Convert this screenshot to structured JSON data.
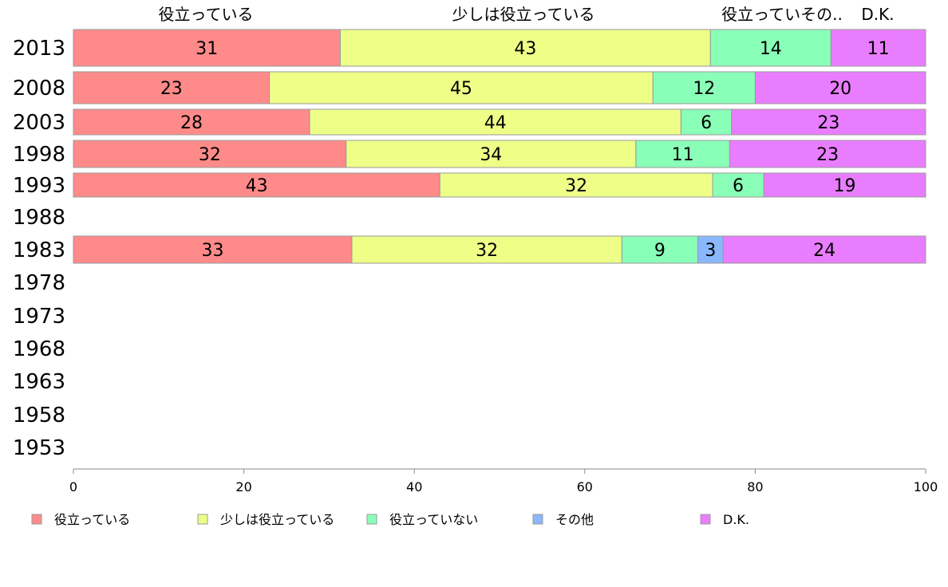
{
  "chart_data": {
    "type": "bar",
    "orientation": "horizontal",
    "stacked": true,
    "categories": [
      "2013",
      "2008",
      "2003",
      "1998",
      "1993",
      "1988",
      "1983",
      "1978",
      "1973",
      "1968",
      "1963",
      "1958",
      "1953"
    ],
    "series": [
      {
        "name": "役立っている",
        "color": "#ff8a8a",
        "values": [
          31,
          23,
          28,
          32,
          43,
          null,
          33,
          null,
          null,
          null,
          null,
          null,
          null
        ]
      },
      {
        "name": "少しは役立っている",
        "color": "#eeff88",
        "values": [
          43,
          45,
          44,
          34,
          32,
          null,
          32,
          null,
          null,
          null,
          null,
          null,
          null
        ]
      },
      {
        "name": "役立っていない",
        "color": "#8affb8",
        "values": [
          14,
          12,
          6,
          11,
          6,
          null,
          9,
          null,
          null,
          null,
          null,
          null,
          null
        ]
      },
      {
        "name": "その他",
        "color": "#8ab8ff",
        "values": [
          0,
          0,
          0,
          0,
          0,
          null,
          3,
          null,
          null,
          null,
          null,
          null,
          null
        ]
      },
      {
        "name": "D.K.",
        "color": "#e97dff",
        "values": [
          11,
          20,
          23,
          23,
          19,
          null,
          24,
          null,
          null,
          null,
          null,
          null,
          null
        ]
      }
    ],
    "top_labels": [
      "役立っている",
      "少しは役立っている",
      "役立っていその..",
      "D.K."
    ],
    "xlim": [
      0,
      100
    ],
    "xticks": [
      "0",
      "20",
      "40",
      "60",
      "80",
      "100"
    ],
    "grid": false,
    "legend_position": "bottom"
  }
}
